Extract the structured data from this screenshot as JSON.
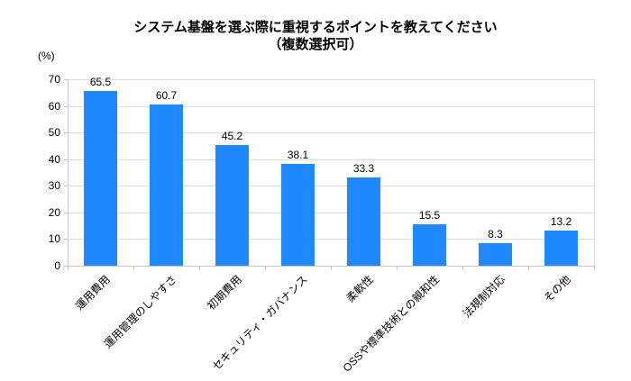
{
  "chart_data": {
    "type": "bar",
    "title": "システム基盤を選ぶ際に重視するポイントを教えてください",
    "subtitle": "（複数選択可）",
    "ylabel": "(%)",
    "categories": [
      "運用費用",
      "運用管理のしやすさ",
      "初期費用",
      "セキュリティ・ガバナンス",
      "柔軟性",
      "OSSや標準技術との親和性",
      "法規制対応",
      "その他"
    ],
    "values": [
      65.5,
      60.7,
      45.2,
      38.1,
      33.3,
      15.5,
      8.3,
      13.2
    ],
    "ylim": [
      0,
      70
    ],
    "yticks": [
      0,
      10,
      20,
      30,
      40,
      50,
      60,
      70
    ],
    "grid": true,
    "legend_position": "none",
    "bar_color": "#2089FF",
    "grid_color": "#dddddd",
    "axis_color": "#c6c6c6",
    "text_color": "#000000"
  }
}
